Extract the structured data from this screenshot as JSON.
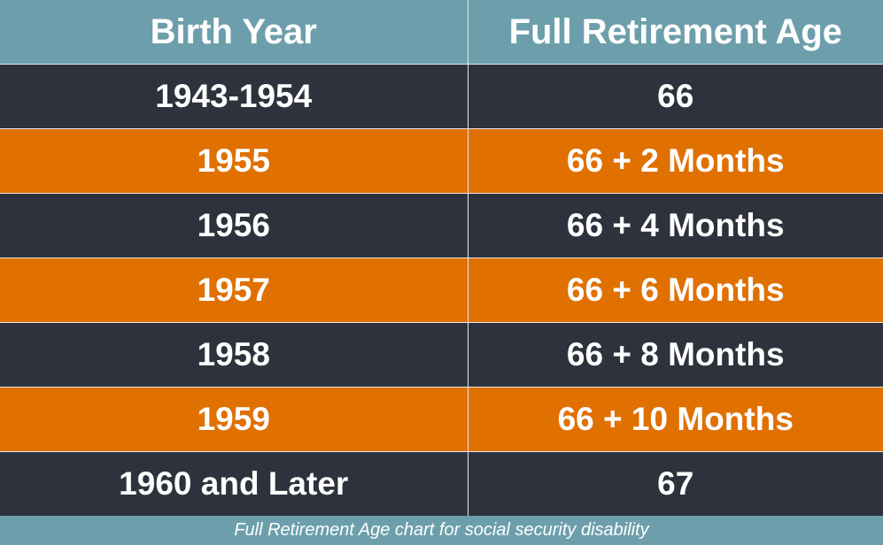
{
  "table": {
    "headers": [
      "Birth Year",
      "Full Retirement Age"
    ],
    "rows": [
      {
        "birth_year": "1943-1954",
        "full_retirement_age": "66"
      },
      {
        "birth_year": "1955",
        "full_retirement_age": "66 + 2 Months"
      },
      {
        "birth_year": "1956",
        "full_retirement_age": "66 + 4 Months"
      },
      {
        "birth_year": "1957",
        "full_retirement_age": "66 + 6 Months"
      },
      {
        "birth_year": "1958",
        "full_retirement_age": "66 + 8 Months"
      },
      {
        "birth_year": "1959",
        "full_retirement_age": "66 + 10 Months"
      },
      {
        "birth_year": "1960 and Later",
        "full_retirement_age": "67"
      }
    ]
  },
  "caption": "Full Retirement Age chart for social security disability",
  "colors": {
    "header_bg": "#6c9fab",
    "row_dark": "#2d323c",
    "row_orange": "#e07000",
    "text": "#ffffff"
  }
}
